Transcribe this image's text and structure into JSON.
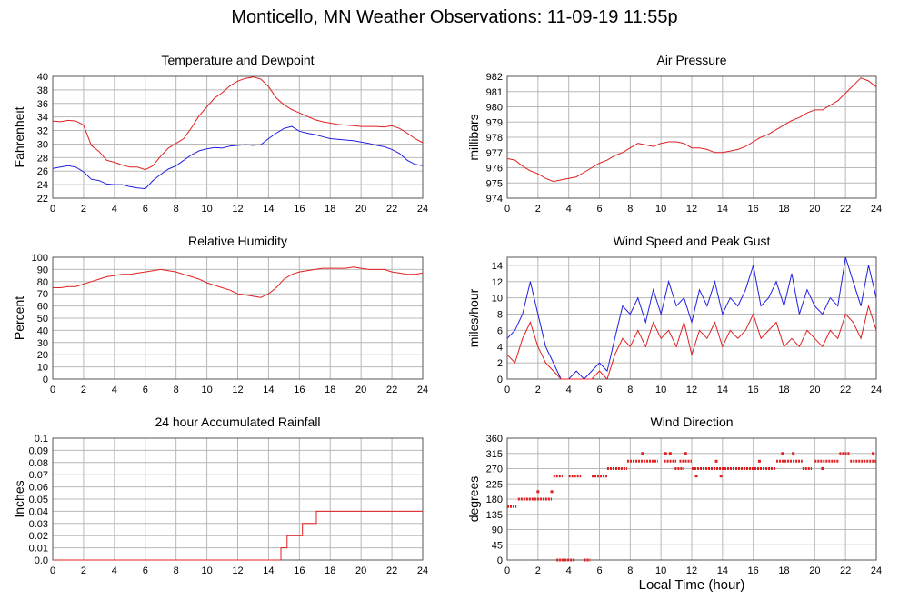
{
  "title": "Monticello, MN Weather Observations: 11-09-19 11:55p",
  "x_axis_title": "Local Time (hour)",
  "colors": {
    "red": "#e02020",
    "blue": "#2020e0",
    "grid": "#b8b8b8"
  },
  "chart_data": [
    {
      "type": "line",
      "title": "Temperature and Dewpoint",
      "ylabel": "Fahrenheit",
      "xlim": [
        0,
        24
      ],
      "xticks": [
        0,
        2,
        4,
        6,
        8,
        10,
        12,
        14,
        16,
        18,
        20,
        22,
        24
      ],
      "ylim": [
        22,
        40
      ],
      "yticks": [
        22,
        24,
        26,
        28,
        30,
        32,
        34,
        36,
        38,
        40
      ],
      "series": [
        {
          "color": "red",
          "x": [
            0,
            0.5,
            1,
            1.5,
            2,
            2.5,
            3,
            3.5,
            4,
            4.5,
            5,
            5.5,
            6,
            6.5,
            7,
            7.5,
            8,
            8.5,
            9,
            9.5,
            10,
            10.5,
            11,
            11.5,
            12,
            12.5,
            13,
            13.5,
            14,
            14.5,
            15,
            15.5,
            16,
            16.5,
            17,
            17.5,
            18,
            18.5,
            19,
            19.5,
            20,
            20.5,
            21,
            21.5,
            22,
            22.5,
            23,
            23.5,
            24
          ],
          "y": [
            33.4,
            33.3,
            33.5,
            33.4,
            32.8,
            29.8,
            28.9,
            27.6,
            27.3,
            26.9,
            26.6,
            26.6,
            26.2,
            26.8,
            28.2,
            29.4,
            30.1,
            30.8,
            32.4,
            34.2,
            35.5,
            36.8,
            37.6,
            38.6,
            39.3,
            39.7,
            39.9,
            39.6,
            38.5,
            36.8,
            35.8,
            35.1,
            34.6,
            34.1,
            33.6,
            33.3,
            33.1,
            32.9,
            32.8,
            32.7,
            32.6,
            32.6,
            32.6,
            32.5,
            32.7,
            32.3,
            31.6,
            30.8,
            30.2
          ]
        },
        {
          "color": "blue",
          "x": [
            0,
            0.5,
            1,
            1.5,
            2,
            2.5,
            3,
            3.5,
            4,
            4.5,
            5,
            5.5,
            6,
            6.5,
            7,
            7.5,
            8,
            8.5,
            9,
            9.5,
            10,
            10.5,
            11,
            11.5,
            12,
            12.5,
            13,
            13.5,
            14,
            14.5,
            15,
            15.5,
            16,
            16.5,
            17,
            17.5,
            18,
            18.5,
            19,
            19.5,
            20,
            20.5,
            21,
            21.5,
            22,
            22.5,
            23,
            23.5,
            24
          ],
          "y": [
            26.4,
            26.6,
            26.8,
            26.6,
            25.9,
            24.8,
            24.6,
            24.1,
            24.0,
            24.0,
            23.7,
            23.5,
            23.4,
            24.6,
            25.5,
            26.3,
            26.8,
            27.6,
            28.4,
            29.0,
            29.3,
            29.5,
            29.4,
            29.7,
            29.8,
            29.9,
            29.8,
            29.9,
            30.8,
            31.6,
            32.3,
            32.6,
            31.9,
            31.6,
            31.4,
            31.1,
            30.8,
            30.7,
            30.6,
            30.5,
            30.3,
            30.1,
            29.8,
            29.6,
            29.2,
            28.6,
            27.6,
            27.0,
            26.8
          ]
        }
      ]
    },
    {
      "type": "line",
      "title": "Air Pressure",
      "ylabel": "millibars",
      "xlim": [
        0,
        24
      ],
      "xticks": [
        0,
        2,
        4,
        6,
        8,
        10,
        12,
        14,
        16,
        18,
        20,
        22,
        24
      ],
      "ylim": [
        974,
        982
      ],
      "yticks": [
        974,
        975,
        976,
        977,
        978,
        979,
        980,
        981,
        982
      ],
      "series": [
        {
          "color": "red",
          "x": [
            0,
            0.5,
            1,
            1.5,
            2,
            2.5,
            3,
            3.5,
            4,
            4.5,
            5,
            5.5,
            6,
            6.5,
            7,
            7.5,
            8,
            8.5,
            9,
            9.5,
            10,
            10.5,
            11,
            11.5,
            12,
            12.5,
            13,
            13.5,
            14,
            14.5,
            15,
            15.5,
            16,
            16.5,
            17,
            17.5,
            18,
            18.5,
            19,
            19.5,
            20,
            20.5,
            21,
            21.5,
            22,
            22.5,
            23,
            23.5,
            24
          ],
          "y": [
            976.6,
            976.5,
            976.1,
            975.8,
            975.6,
            975.3,
            975.1,
            975.2,
            975.3,
            975.4,
            975.7,
            976.0,
            976.3,
            976.5,
            976.8,
            977.0,
            977.3,
            977.6,
            977.5,
            977.4,
            977.6,
            977.7,
            977.7,
            977.6,
            977.3,
            977.3,
            977.2,
            977.0,
            977.0,
            977.1,
            977.2,
            977.4,
            977.7,
            978.0,
            978.2,
            978.5,
            978.8,
            979.1,
            979.3,
            979.6,
            979.8,
            979.8,
            980.1,
            980.4,
            980.9,
            981.4,
            981.9,
            981.7,
            981.3
          ]
        }
      ]
    },
    {
      "type": "line",
      "title": "Relative Humidity",
      "ylabel": "Percent",
      "xlim": [
        0,
        24
      ],
      "xticks": [
        0,
        2,
        4,
        6,
        8,
        10,
        12,
        14,
        16,
        18,
        20,
        22,
        24
      ],
      "ylim": [
        0,
        100
      ],
      "yticks": [
        0,
        10,
        20,
        30,
        40,
        50,
        60,
        70,
        80,
        90,
        100
      ],
      "series": [
        {
          "color": "red",
          "x": [
            0,
            0.5,
            1,
            1.5,
            2,
            2.5,
            3,
            3.5,
            4,
            4.5,
            5,
            5.5,
            6,
            6.5,
            7,
            7.5,
            8,
            8.5,
            9,
            9.5,
            10,
            10.5,
            11,
            11.5,
            12,
            12.5,
            13,
            13.5,
            14,
            14.5,
            15,
            15.5,
            16,
            16.5,
            17,
            17.5,
            18,
            18.5,
            19,
            19.5,
            20,
            20.5,
            21,
            21.5,
            22,
            22.5,
            23,
            23.5,
            24
          ],
          "y": [
            75,
            75,
            76,
            76,
            78,
            80,
            82,
            84,
            85,
            86,
            86,
            87,
            88,
            89,
            90,
            89,
            88,
            86,
            84,
            82,
            79,
            77,
            75,
            73,
            70,
            69,
            68,
            67,
            70,
            75,
            82,
            86,
            88,
            89,
            90,
            91,
            91,
            91,
            91,
            92,
            91,
            90,
            90,
            90,
            88,
            87,
            86,
            86,
            87
          ]
        }
      ]
    },
    {
      "type": "line",
      "title": "Wind Speed and Peak Gust",
      "ylabel": "miles/hour",
      "xlim": [
        0,
        24
      ],
      "xticks": [
        0,
        2,
        4,
        6,
        8,
        10,
        12,
        14,
        16,
        18,
        20,
        22,
        24
      ],
      "ylim": [
        0,
        15
      ],
      "yticks": [
        0,
        2,
        4,
        6,
        8,
        10,
        12,
        14
      ],
      "series": [
        {
          "color": "blue",
          "x": [
            0,
            0.5,
            1,
            1.5,
            2,
            2.5,
            3,
            3.5,
            4,
            4.5,
            5,
            5.5,
            6,
            6.5,
            7,
            7.5,
            8,
            8.5,
            9,
            9.5,
            10,
            10.5,
            11,
            11.5,
            12,
            12.5,
            13,
            13.5,
            14,
            14.5,
            15,
            15.5,
            16,
            16.5,
            17,
            17.5,
            18,
            18.5,
            19,
            19.5,
            20,
            20.5,
            21,
            21.5,
            22,
            22.5,
            23,
            23.5,
            24
          ],
          "y": [
            5,
            6,
            8,
            12,
            8,
            4,
            2,
            0,
            0,
            1,
            0,
            1,
            2,
            1,
            5,
            9,
            8,
            10,
            7,
            11,
            8,
            12,
            9,
            10,
            7,
            11,
            9,
            12,
            8,
            10,
            9,
            11,
            14,
            9,
            10,
            12,
            9,
            13,
            8,
            11,
            9,
            8,
            10,
            9,
            15,
            12,
            9,
            14,
            10
          ]
        },
        {
          "color": "red",
          "x": [
            0,
            0.5,
            1,
            1.5,
            2,
            2.5,
            3,
            3.5,
            4,
            4.5,
            5,
            5.5,
            6,
            6.5,
            7,
            7.5,
            8,
            8.5,
            9,
            9.5,
            10,
            10.5,
            11,
            11.5,
            12,
            12.5,
            13,
            13.5,
            14,
            14.5,
            15,
            15.5,
            16,
            16.5,
            17,
            17.5,
            18,
            18.5,
            19,
            19.5,
            20,
            20.5,
            21,
            21.5,
            22,
            22.5,
            23,
            23.5,
            24
          ],
          "y": [
            3,
            2,
            5,
            7,
            4,
            2,
            1,
            0,
            0,
            0,
            0,
            0,
            1,
            0,
            3,
            5,
            4,
            6,
            4,
            7,
            5,
            6,
            4,
            7,
            3,
            6,
            5,
            7,
            4,
            6,
            5,
            6,
            8,
            5,
            6,
            7,
            4,
            5,
            4,
            6,
            5,
            4,
            6,
            5,
            8,
            7,
            5,
            9,
            6
          ]
        }
      ]
    },
    {
      "type": "line",
      "title": "24 hour Accumulated Rainfall",
      "ylabel": "Inches",
      "xlim": [
        0,
        24
      ],
      "xticks": [
        0,
        2,
        4,
        6,
        8,
        10,
        12,
        14,
        16,
        18,
        20,
        22,
        24
      ],
      "ylim": [
        0,
        0.1
      ],
      "yticks": [
        "0.0",
        "0.01",
        "0.02",
        "0.03",
        "0.04",
        "0.05",
        "0.06",
        "0.07",
        "0.08",
        "0.09",
        "0.1"
      ],
      "series": [
        {
          "color": "red",
          "step": true,
          "x": [
            0,
            14.8,
            15.2,
            16.2,
            17.1,
            24
          ],
          "y": [
            0,
            0.01,
            0.02,
            0.03,
            0.04,
            0.04
          ]
        }
      ]
    },
    {
      "type": "scatter",
      "title": "Wind Direction",
      "ylabel": "degrees",
      "xlim": [
        0,
        24
      ],
      "xticks": [
        0,
        2,
        4,
        6,
        8,
        10,
        12,
        14,
        16,
        18,
        20,
        22,
        24
      ],
      "ylim": [
        0,
        360
      ],
      "yticks": [
        0,
        45,
        90,
        135,
        180,
        225,
        270,
        315,
        360
      ],
      "series": [
        {
          "color": "red",
          "segments": [
            {
              "x": [
                0,
                0.6
              ],
              "y": 158
            },
            {
              "x": [
                0.7,
                2.9
              ],
              "y": 180
            },
            {
              "x": [
                3.0,
                3.6
              ],
              "y": 248
            },
            {
              "x": [
                3.2,
                4.4
              ],
              "y": 0
            },
            {
              "x": [
                4.0,
                4.8
              ],
              "y": 248
            },
            {
              "x": [
                5.0,
                5.4
              ],
              "y": 0
            },
            {
              "x": [
                5.5,
                6.5
              ],
              "y": 248
            },
            {
              "x": [
                6.5,
                7.8
              ],
              "y": 270
            },
            {
              "x": [
                7.8,
                9.8
              ],
              "y": 292
            },
            {
              "x": [
                10.2,
                11.0
              ],
              "y": 292
            },
            {
              "x": [
                11.2,
                12.0
              ],
              "y": 292
            },
            {
              "x": [
                10.9,
                11.5
              ],
              "y": 270
            },
            {
              "x": [
                12.0,
                17.5
              ],
              "y": 270
            },
            {
              "x": [
                17.5,
                19.2
              ],
              "y": 292
            },
            {
              "x": [
                19.2,
                19.8
              ],
              "y": 270
            },
            {
              "x": [
                20.0,
                21.6
              ],
              "y": 292
            },
            {
              "x": [
                21.6,
                22.3
              ],
              "y": 315
            },
            {
              "x": [
                22.3,
                24.0
              ],
              "y": 292
            }
          ],
          "points": [
            {
              "x": 2.0,
              "y": 202
            },
            {
              "x": 2.9,
              "y": 202
            },
            {
              "x": 8.8,
              "y": 315
            },
            {
              "x": 10.3,
              "y": 315
            },
            {
              "x": 10.6,
              "y": 315
            },
            {
              "x": 11.6,
              "y": 315
            },
            {
              "x": 12.3,
              "y": 248
            },
            {
              "x": 13.6,
              "y": 292
            },
            {
              "x": 13.9,
              "y": 248
            },
            {
              "x": 16.4,
              "y": 292
            },
            {
              "x": 17.9,
              "y": 315
            },
            {
              "x": 18.6,
              "y": 315
            },
            {
              "x": 20.5,
              "y": 270
            },
            {
              "x": 23.8,
              "y": 315
            }
          ]
        }
      ]
    }
  ]
}
